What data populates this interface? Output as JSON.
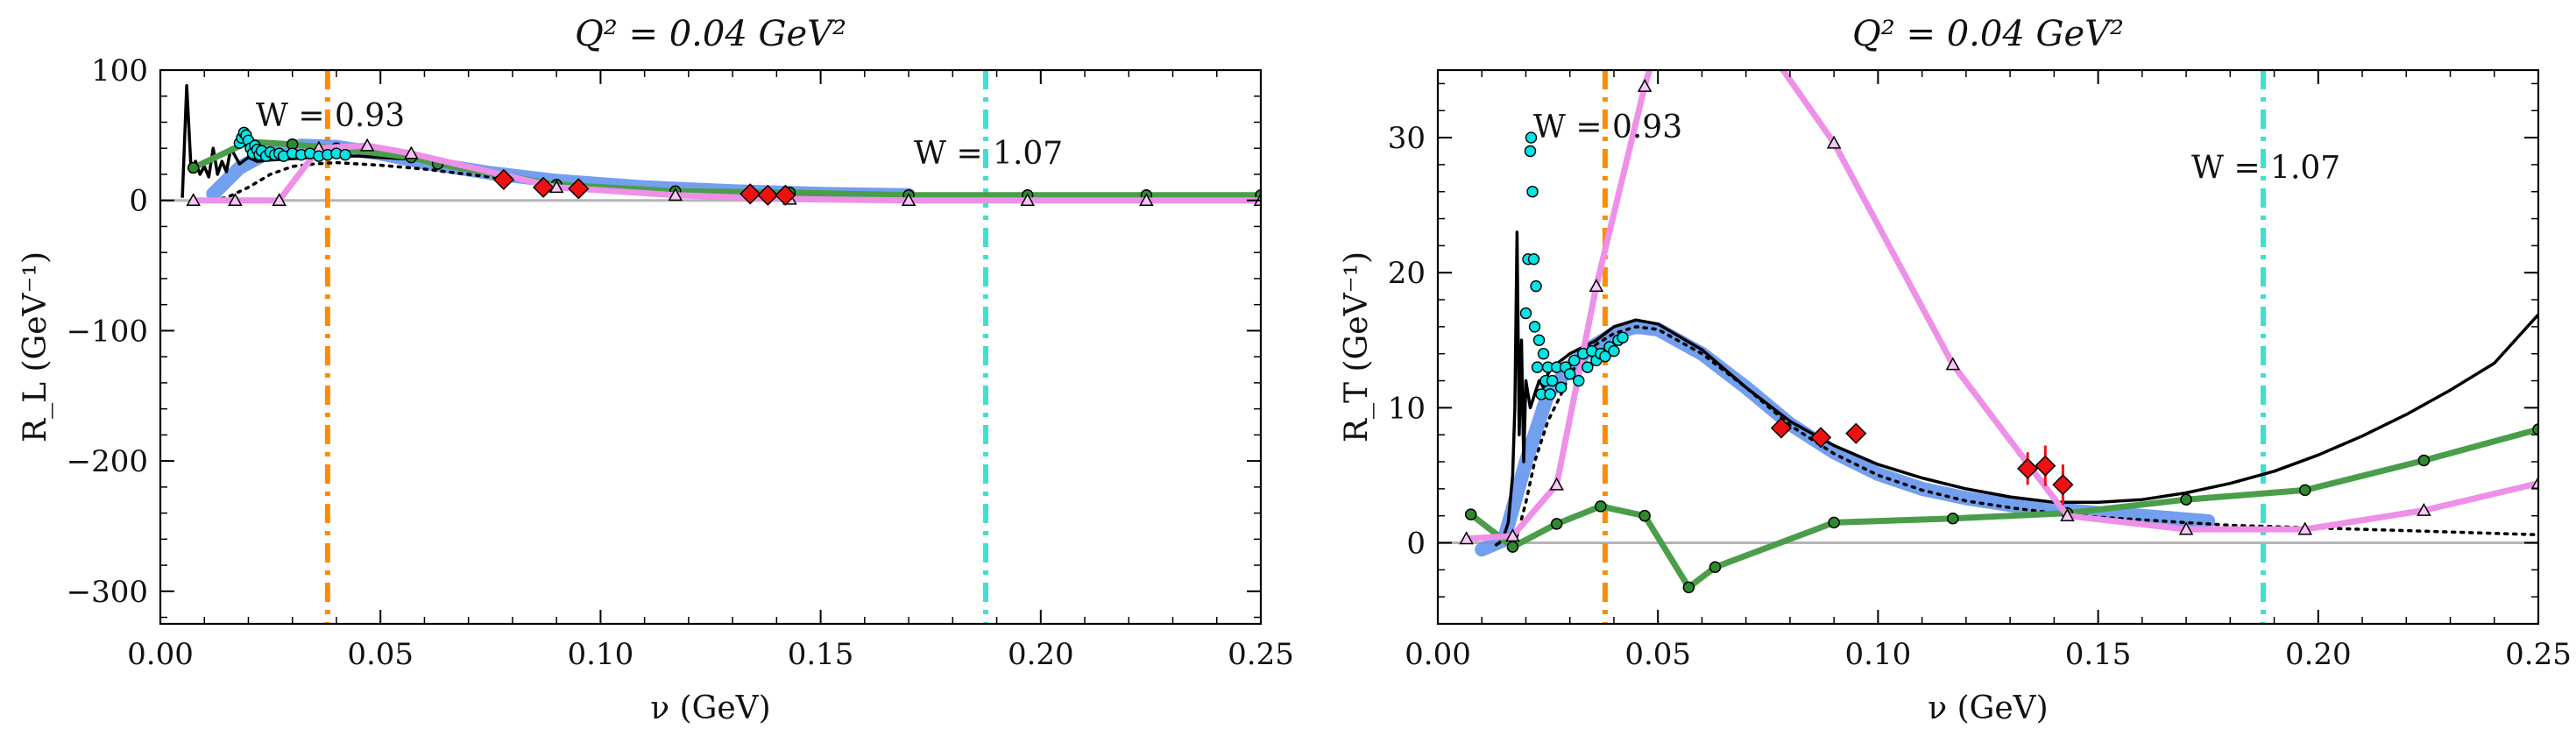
{
  "chart_data": [
    {
      "type": "line",
      "title": "Q² = 0.04 GeV²",
      "xlabel": "ν (GeV)",
      "ylabel": "R_L (GeV⁻¹)",
      "xlim": [
        0.0,
        0.25
      ],
      "ylim": [
        -325,
        100
      ],
      "xticks": [
        0.0,
        0.05,
        0.1,
        0.15,
        0.2,
        0.25
      ],
      "xtick_labels": [
        "0.00",
        "0.05",
        "0.10",
        "0.15",
        "0.20",
        "0.25"
      ],
      "yticks": [
        -300,
        -200,
        -100,
        0,
        100
      ],
      "ytick_labels": [
        "−300",
        "−200",
        "−100",
        "0",
        "100"
      ],
      "grid": false,
      "zero_line": 0,
      "vlines": [
        {
          "x": 0.038,
          "label": "W = 0.93",
          "color": "#ff8c00",
          "label_y": 57
        },
        {
          "x": 0.1875,
          "label": "W = 1.07",
          "color": "#40e0d0",
          "label_y": 28
        }
      ],
      "series": [
        {
          "style": "blue-band",
          "color": "#6495ed",
          "x": [
            0.012,
            0.018,
            0.025,
            0.032,
            0.04,
            0.05,
            0.06,
            0.075,
            0.09,
            0.11,
            0.13,
            0.15,
            0.17
          ],
          "y": [
            5,
            25,
            38,
            42,
            41,
            36,
            29,
            21,
            15,
            10,
            7,
            5,
            4
          ]
        },
        {
          "style": "black-solid",
          "color": "#000000",
          "x": [
            0.005,
            0.006,
            0.007,
            0.008,
            0.009,
            0.01,
            0.011,
            0.012,
            0.013,
            0.014,
            0.015,
            0.016,
            0.018,
            0.02,
            0.022,
            0.025,
            0.03,
            0.035,
            0.04,
            0.045,
            0.05,
            0.055,
            0.06
          ],
          "y": [
            2,
            88,
            22,
            30,
            20,
            26,
            18,
            40,
            20,
            30,
            22,
            40,
            28,
            33,
            30,
            31,
            32,
            33,
            34,
            34,
            33,
            32,
            31
          ]
        },
        {
          "style": "black-dotted",
          "color": "#000000",
          "x": [
            0.01,
            0.015,
            0.02,
            0.025,
            0.03,
            0.035,
            0.04,
            0.045,
            0.05,
            0.06,
            0.07,
            0.08,
            0.09,
            0.1,
            0.12,
            0.14,
            0.16,
            0.18,
            0.2,
            0.22,
            0.25
          ],
          "y": [
            0,
            2,
            10,
            20,
            26,
            28,
            29,
            28,
            27,
            24,
            20,
            16,
            13,
            10,
            7,
            5,
            4,
            3,
            2,
            2,
            1
          ]
        },
        {
          "style": "green-dots",
          "color": "#4a9e4a",
          "x": [
            0.0075,
            0.02,
            0.03,
            0.04,
            0.057,
            0.063,
            0.09,
            0.117,
            0.143,
            0.17,
            0.197,
            0.224,
            0.25
          ],
          "y": [
            25,
            45,
            43,
            40,
            33,
            28,
            12,
            7,
            6,
            4,
            4,
            4,
            4
          ]
        },
        {
          "style": "violet-triangles",
          "color": "#ee90e8",
          "x": [
            0.0075,
            0.017,
            0.027,
            0.036,
            0.047,
            0.057,
            0.09,
            0.117,
            0.143,
            0.17,
            0.197,
            0.224,
            0.25
          ],
          "y": [
            0,
            0,
            0,
            40,
            42,
            36,
            10,
            4,
            1,
            0,
            0,
            0,
            0
          ]
        },
        {
          "style": "cyan-circles",
          "color": "#00e5e5",
          "x": [
            0.018,
            0.0185,
            0.019,
            0.0195,
            0.02,
            0.0205,
            0.021,
            0.0215,
            0.022,
            0.0225,
            0.023,
            0.024,
            0.025,
            0.026,
            0.027,
            0.028,
            0.03,
            0.032,
            0.034,
            0.036,
            0.038,
            0.04,
            0.042
          ],
          "y": [
            44,
            48,
            52,
            50,
            46,
            40,
            36,
            42,
            39,
            35,
            38,
            34,
            37,
            35,
            36,
            34,
            36,
            35,
            36,
            34,
            35,
            36,
            35
          ]
        },
        {
          "style": "red-diamonds",
          "color": "#ee1111",
          "x": [
            0.078,
            0.087,
            0.095,
            0.134,
            0.138,
            0.142
          ],
          "y": [
            16,
            10,
            9,
            5,
            4,
            4
          ]
        }
      ]
    },
    {
      "type": "line",
      "title": "Q² = 0.04 GeV²",
      "xlabel": "ν (GeV)",
      "ylabel": "R_T (GeV⁻¹)",
      "xlim": [
        0.0,
        0.25
      ],
      "ylim": [
        -6,
        35
      ],
      "xticks": [
        0.0,
        0.05,
        0.1,
        0.15,
        0.2,
        0.25
      ],
      "xtick_labels": [
        "0.00",
        "0.05",
        "0.10",
        "0.15",
        "0.20",
        "0.25"
      ],
      "yticks": [
        0,
        10,
        20,
        30
      ],
      "ytick_labels": [
        "0",
        "10",
        "20",
        "30"
      ],
      "grid": false,
      "zero_line": 0,
      "vlines": [
        {
          "x": 0.038,
          "label": "W = 0.93",
          "color": "#ff8c00",
          "label_y": 30
        },
        {
          "x": 0.1875,
          "label": "W = 1.07",
          "color": "#40e0d0",
          "label_y": 27
        }
      ],
      "series": [
        {
          "style": "blue-band",
          "color": "#6495ed",
          "x": [
            0.01,
            0.015,
            0.02,
            0.025,
            0.03,
            0.035,
            0.04,
            0.045,
            0.05,
            0.06,
            0.07,
            0.08,
            0.09,
            0.1,
            0.11,
            0.12,
            0.13,
            0.14,
            0.15,
            0.16,
            0.175
          ],
          "y": [
            -0.5,
            0.2,
            6,
            11,
            13,
            14.5,
            15.5,
            16,
            15.8,
            14,
            11.5,
            8.8,
            6.7,
            5.1,
            4.0,
            3.3,
            2.8,
            2.5,
            2.2,
            2.0,
            1.6
          ]
        },
        {
          "style": "black-solid",
          "color": "#000000",
          "x": [
            0.013,
            0.014,
            0.015,
            0.016,
            0.017,
            0.0175,
            0.018,
            0.0185,
            0.019,
            0.0195,
            0.02,
            0.021,
            0.022,
            0.023,
            0.024,
            0.025,
            0.026,
            0.028,
            0.03,
            0.033,
            0.036,
            0.04,
            0.045,
            0.05,
            0.06,
            0.07,
            0.08,
            0.09,
            0.1,
            0.11,
            0.12,
            0.13,
            0.14,
            0.15,
            0.16,
            0.17,
            0.18,
            0.19,
            0.2,
            0.21,
            0.22,
            0.23,
            0.24,
            0.25
          ],
          "y": [
            -0.2,
            0.0,
            0.5,
            1.5,
            5,
            10,
            23,
            8,
            15,
            6,
            12,
            10,
            11,
            12,
            11.5,
            12.5,
            13,
            13.5,
            14,
            14.5,
            15,
            16,
            16.5,
            16.2,
            14.3,
            11.5,
            9,
            7.2,
            5.8,
            4.8,
            4.0,
            3.4,
            3.0,
            3.0,
            3.2,
            3.7,
            4.4,
            5.3,
            6.5,
            7.9,
            9.5,
            11.3,
            13.3,
            16.9
          ]
        },
        {
          "style": "black-dotted",
          "color": "#000000",
          "x": [
            0.018,
            0.02,
            0.022,
            0.025,
            0.028,
            0.03,
            0.035,
            0.04,
            0.045,
            0.05,
            0.06,
            0.07,
            0.08,
            0.09,
            0.1,
            0.11,
            0.12,
            0.13,
            0.14,
            0.15,
            0.16,
            0.17,
            0.18,
            0.19,
            0.2,
            0.22,
            0.25
          ],
          "y": [
            0.5,
            3,
            6,
            9,
            11,
            12.5,
            14.5,
            15.5,
            16,
            15.8,
            14,
            11.5,
            8.7,
            6.6,
            5.0,
            3.9,
            3.1,
            2.6,
            2.2,
            1.9,
            1.7,
            1.5,
            1.3,
            1.2,
            1.1,
            0.9,
            0.6
          ]
        },
        {
          "style": "green-dots",
          "color": "#4a9e4a",
          "x": [
            0.0075,
            0.017,
            0.027,
            0.037,
            0.047,
            0.057,
            0.063,
            0.09,
            0.117,
            0.143,
            0.17,
            0.197,
            0.224,
            0.25
          ],
          "y": [
            2.1,
            -0.3,
            1.4,
            2.7,
            2.0,
            -3.3,
            -1.8,
            1.5,
            1.8,
            2.2,
            3.2,
            3.9,
            6.1,
            8.4
          ]
        },
        {
          "style": "violet-triangles",
          "color": "#ee90e8",
          "x": [
            0.0065,
            0.017,
            0.027,
            0.036,
            0.047,
            0.057,
            0.09,
            0.117,
            0.143,
            0.17,
            0.197,
            0.224,
            0.25
          ],
          "y": [
            0.3,
            0.5,
            4.3,
            19,
            33.8,
            45,
            29.6,
            13.2,
            2,
            1,
            1,
            2.4,
            4.4
          ]
        },
        {
          "style": "cyan-circles",
          "color": "#00e5e5",
          "x": [
            0.02,
            0.0205,
            0.021,
            0.0212,
            0.0215,
            0.0218,
            0.022,
            0.0223,
            0.0226,
            0.023,
            0.0235,
            0.024,
            0.0245,
            0.025,
            0.0255,
            0.026,
            0.027,
            0.028,
            0.029,
            0.03,
            0.031,
            0.032,
            0.033,
            0.034,
            0.035,
            0.036,
            0.037,
            0.038,
            0.039,
            0.04,
            0.041,
            0.042
          ],
          "y": [
            17,
            21,
            29,
            30,
            26,
            21,
            16,
            19,
            13,
            15,
            11,
            14,
            12,
            13,
            11,
            12,
            13,
            11.5,
            13,
            12.5,
            13.5,
            12,
            14,
            13,
            14.2,
            13.5,
            14,
            13.8,
            14.5,
            14.2,
            15,
            15.2
          ]
        },
        {
          "style": "red-diamonds",
          "color": "#ee1111",
          "x": [
            0.078,
            0.087,
            0.095,
            0.134,
            0.138,
            0.142
          ],
          "y": [
            8.5,
            7.8,
            8.1,
            5.5,
            5.7,
            4.3
          ],
          "yerr": [
            0,
            0,
            0,
            1.2,
            1.5,
            1.5
          ]
        }
      ]
    }
  ]
}
